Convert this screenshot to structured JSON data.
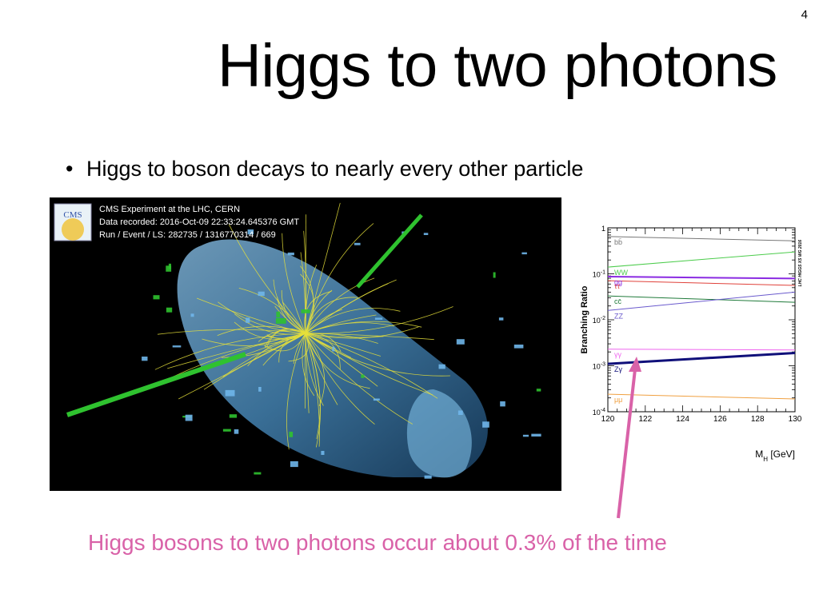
{
  "slide": {
    "page_number": "4",
    "title": "Higgs to two photons",
    "bullet": "Higgs to boson decays to nearly every other particle",
    "caption": "Higgs bosons to two photons occur about 0.3% of the time",
    "caption_color": "#d962a8"
  },
  "event_display": {
    "logo_text": "CMS",
    "line1": "CMS Experiment at the LHC, CERN",
    "line2": "Data recorded: 2016-Oct-09 22:33:24.645376 GMT",
    "line3": "Run / Event / LS: 282735 / 1316770314 / 669",
    "track_color": "#e6e03a",
    "photon_color": "#2fc22f",
    "detector_color": "#6fb6ea"
  },
  "chart_data": {
    "type": "line",
    "title": "",
    "xlabel": "M_H [GeV]",
    "xlabel_main": "M",
    "xlabel_sub": "H",
    "xlabel_unit": " [GeV]",
    "ylabel": "Branching Ratio",
    "side_label": "LHC HIGGS XS WG 2016",
    "xlim": [
      120,
      130
    ],
    "ylim": [
      0.0001,
      1
    ],
    "yscale": "log",
    "x_ticks": [
      "120",
      "122",
      "124",
      "126",
      "128",
      "130"
    ],
    "y_ticks": [
      {
        "base": "1",
        "exp": ""
      },
      {
        "base": "10",
        "exp": "-1"
      },
      {
        "base": "10",
        "exp": "-2"
      },
      {
        "base": "10",
        "exp": "-3"
      },
      {
        "base": "10",
        "exp": "-4"
      }
    ],
    "series": [
      {
        "name": "bb̄",
        "color": "#777777",
        "width": 1,
        "values": [
          0.65,
          0.52
        ]
      },
      {
        "name": "WW",
        "color": "#4ccc4c",
        "width": 1,
        "values": [
          0.14,
          0.3
        ]
      },
      {
        "name": "gg",
        "color": "#8a2be2",
        "width": 2,
        "values": [
          0.087,
          0.079
        ]
      },
      {
        "name": "ττ",
        "color": "#e0413a",
        "width": 1,
        "values": [
          0.071,
          0.056
        ]
      },
      {
        "name": "cc̄",
        "color": "#1f7a3a",
        "width": 1,
        "values": [
          0.033,
          0.024
        ]
      },
      {
        "name": "ZZ",
        "color": "#6a5acd",
        "width": 1,
        "values": [
          0.016,
          0.04
        ]
      },
      {
        "name": "γγ",
        "color": "#ee66ee",
        "width": 1,
        "values": [
          0.0023,
          0.0022
        ]
      },
      {
        "name": "Zγ",
        "color": "#10107a",
        "width": 3,
        "values": [
          0.0011,
          0.0019
        ]
      },
      {
        "name": "μμ",
        "color": "#f0a040",
        "width": 1,
        "values": [
          0.00024,
          0.00019
        ]
      }
    ]
  }
}
